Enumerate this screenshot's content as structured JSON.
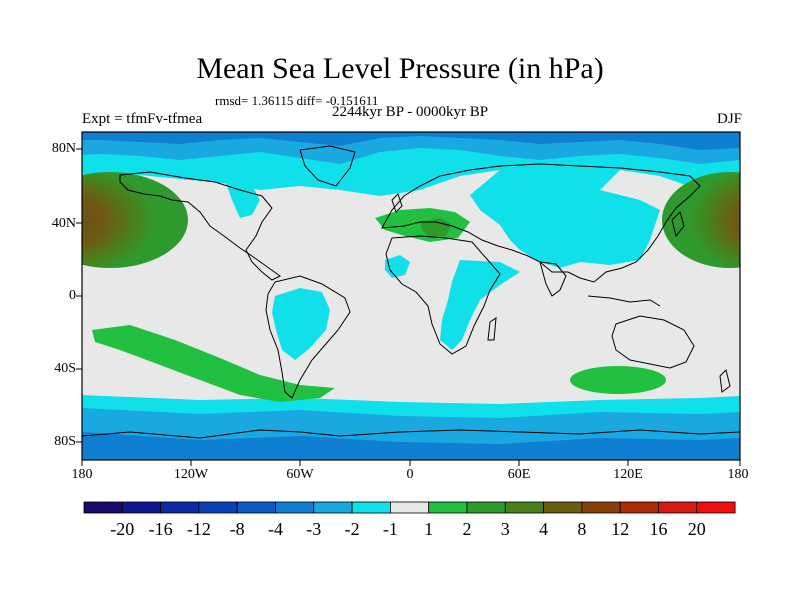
{
  "title": "Mean Sea Level Pressure (in hPa)",
  "stats": "rmsd= 1.36115 diff= -0.151611",
  "experiment": "Expt = tfmFv-tfmea",
  "period": "2244kyr BP - 0000kyr BP",
  "season": "DJF",
  "lat_labels": [
    "80N",
    "40N",
    "0",
    "40S",
    "80S"
  ],
  "lon_labels": [
    "180",
    "120W",
    "60W",
    "0",
    "60E",
    "120E",
    "180"
  ],
  "colorbar": {
    "labels": [
      "-20",
      "-16",
      "-12",
      "-8",
      "-4",
      "-3",
      "-2",
      "-1",
      "1",
      "2",
      "3",
      "4",
      "8",
      "12",
      "16",
      "20"
    ],
    "colors": [
      "#1a0a6e",
      "#101890",
      "#0a2aa6",
      "#0a40b8",
      "#0b5cc4",
      "#0f7fd2",
      "#1aa8e0",
      "#10e0ea",
      "#e8e8e8",
      "#22c040",
      "#2e9a2e",
      "#4a7f1a",
      "#6b5e10",
      "#8a3f0a",
      "#b02a0a",
      "#d81a10",
      "#ee1010"
    ]
  }
}
